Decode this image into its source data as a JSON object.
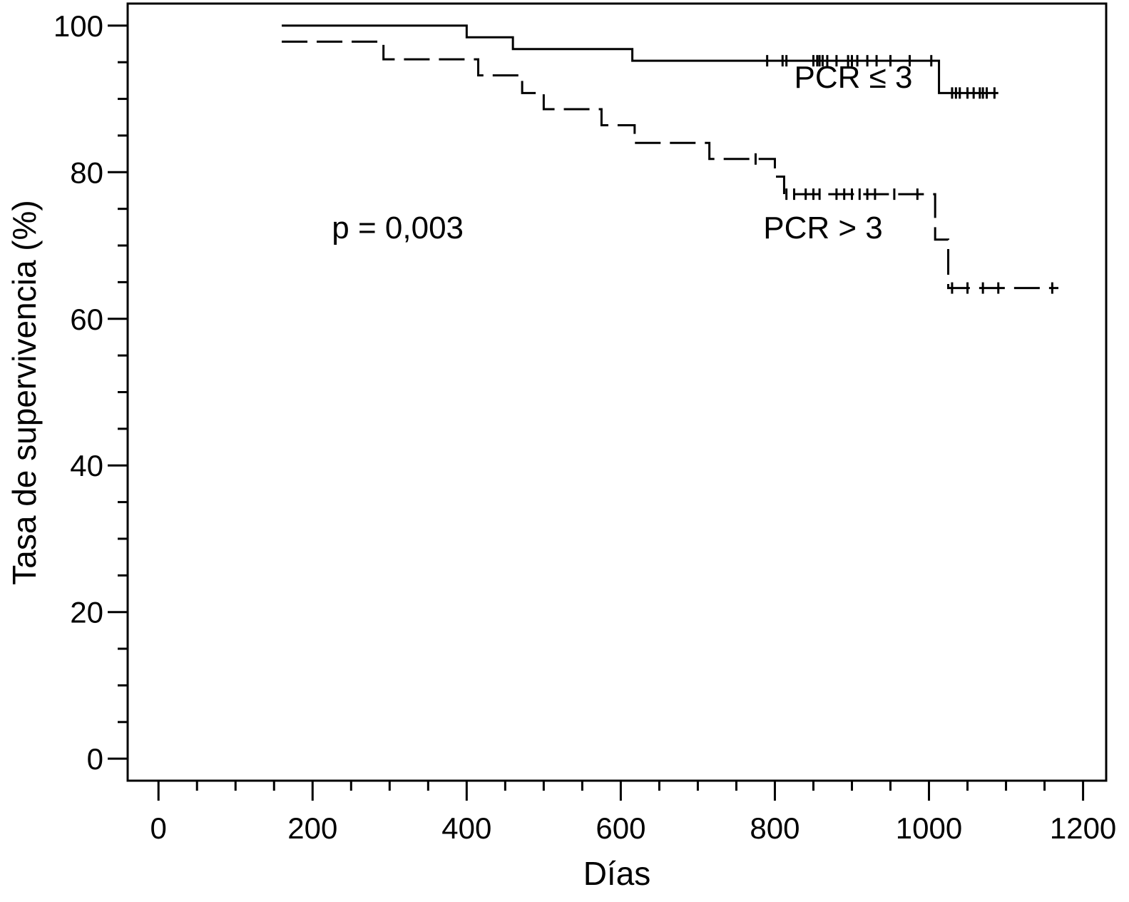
{
  "chart_data": {
    "type": "line",
    "xlabel": "Días",
    "ylabel": "Tasa de supervivencia (%)",
    "xlim": [
      -40,
      1230
    ],
    "ylim": [
      -3,
      103
    ],
    "x_ticks": [
      0,
      200,
      400,
      600,
      800,
      1000,
      1200
    ],
    "y_ticks": [
      0,
      20,
      40,
      60,
      80,
      100
    ],
    "x_minor_step": 50,
    "y_minor_step": 5,
    "grid": false,
    "annotations": [
      {
        "text": "p = 0,003",
        "x": 225,
        "y": 71
      },
      {
        "text": "PCR ≤ 3",
        "x": 825,
        "y": 91.5
      },
      {
        "text": "PCR > 3",
        "x": 785,
        "y": 71
      }
    ],
    "series": [
      {
        "name": "PCR ≤ 3",
        "line_style": "solid",
        "steps": [
          [
            160,
            100
          ],
          [
            400,
            98.4
          ],
          [
            460,
            96.8
          ],
          [
            615,
            95.2
          ],
          [
            1013,
            90.8
          ],
          [
            1090,
            90.8
          ]
        ],
        "censored": [
          790,
          810,
          815,
          850,
          855,
          858,
          862,
          868,
          880,
          895,
          900,
          907,
          920,
          932,
          950,
          975,
          1003,
          1030,
          1035,
          1040,
          1050,
          1058,
          1066,
          1070,
          1075,
          1085
        ]
      },
      {
        "name": "PCR > 3",
        "line_style": "dashed",
        "steps": [
          [
            160,
            97.8
          ],
          [
            292,
            95.4
          ],
          [
            415,
            93.2
          ],
          [
            472,
            90.8
          ],
          [
            500,
            88.6
          ],
          [
            575,
            86.4
          ],
          [
            618,
            84.0
          ],
          [
            715,
            81.8
          ],
          [
            800,
            79.4
          ],
          [
            812,
            77.0
          ],
          [
            1008,
            70.8
          ],
          [
            1025,
            64.2
          ],
          [
            1168,
            64.2
          ]
        ],
        "censored": [
          775,
          815,
          825,
          840,
          850,
          858,
          880,
          890,
          900,
          910,
          920,
          930,
          955,
          985,
          1030,
          1050,
          1070,
          1090,
          1160
        ]
      }
    ]
  }
}
